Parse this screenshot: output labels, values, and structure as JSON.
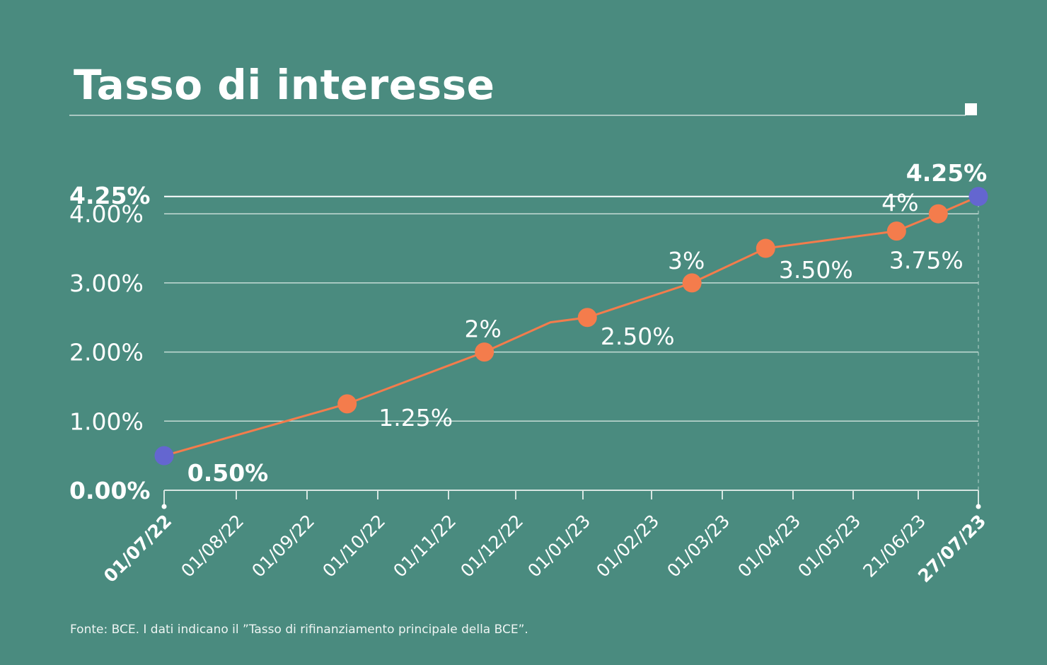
{
  "chart_data": {
    "type": "line",
    "title": "Tasso di interesse",
    "footnote": "Fonte: BCE. I dati indicano il ”Tasso di rifinanziamento principale della BCE”.",
    "xlabel": "",
    "ylabel": "",
    "ylim": [
      0,
      4.25
    ],
    "grid": true,
    "y_ticks": [
      {
        "value": 4.25,
        "label": "4.25%",
        "bold": true
      },
      {
        "value": 4.0,
        "label": "4.00%",
        "bold": false
      },
      {
        "value": 3.0,
        "label": "3.00%",
        "bold": false
      },
      {
        "value": 2.0,
        "label": "2.00%",
        "bold": false
      },
      {
        "value": 1.0,
        "label": "1.00%",
        "bold": false
      },
      {
        "value": 0.0,
        "label": "0.00%",
        "bold": true
      }
    ],
    "x_ticks": [
      {
        "date": "2022-07-01",
        "label": "01/07/22",
        "bold": true
      },
      {
        "date": "2022-08-01",
        "label": "01/08/22",
        "bold": false
      },
      {
        "date": "2022-09-01",
        "label": "01/09/22",
        "bold": false
      },
      {
        "date": "2022-10-01",
        "label": "01/10/22",
        "bold": false
      },
      {
        "date": "2022-11-01",
        "label": "01/11/22",
        "bold": false
      },
      {
        "date": "2022-12-01",
        "label": "01/12/22",
        "bold": false
      },
      {
        "date": "2023-01-01",
        "label": "01/01/23",
        "bold": false
      },
      {
        "date": "2023-02-01",
        "label": "01/02/23",
        "bold": false
      },
      {
        "date": "2023-03-01",
        "label": "01/03/23",
        "bold": false
      },
      {
        "date": "2023-04-01",
        "label": "01/04/23",
        "bold": false
      },
      {
        "date": "2023-05-01",
        "label": "01/05/23",
        "bold": false
      },
      {
        "date": "2023-06-21",
        "label": "21/06/23",
        "bold": false
      },
      {
        "date": "2023-07-27",
        "label": "27/07/23",
        "bold": true
      }
    ],
    "series": [
      {
        "name": "Tasso di rifinanziamento principale",
        "color": "#f47c4c",
        "endpoint_color": "#6466d0",
        "points": [
          {
            "date": "2022-07-01",
            "value": 0.5,
            "label": "0.50%",
            "marker": true,
            "endpoint": true
          },
          {
            "date": "2022-09-18",
            "value": 1.25,
            "label": "1.25%",
            "marker": true
          },
          {
            "date": "2022-11-17",
            "value": 2.0,
            "label": "2%",
            "marker": true
          },
          {
            "date": "2022-12-17",
            "value": 2.43,
            "label": null,
            "marker": false
          },
          {
            "date": "2023-01-03",
            "value": 2.5,
            "label": "2.50%",
            "marker": true
          },
          {
            "date": "2023-02-17",
            "value": 3.0,
            "label": "3%",
            "marker": true
          },
          {
            "date": "2023-03-20",
            "value": 3.5,
            "label": "3.50%",
            "marker": true
          },
          {
            "date": "2023-06-04",
            "value": 3.75,
            "label": "3.75%",
            "marker": true
          },
          {
            "date": "2023-07-03",
            "value": 4.0,
            "label": "4%",
            "marker": true
          },
          {
            "date": "2023-07-27",
            "value": 4.25,
            "label": "4.25%",
            "marker": true,
            "endpoint": true
          }
        ]
      }
    ]
  }
}
